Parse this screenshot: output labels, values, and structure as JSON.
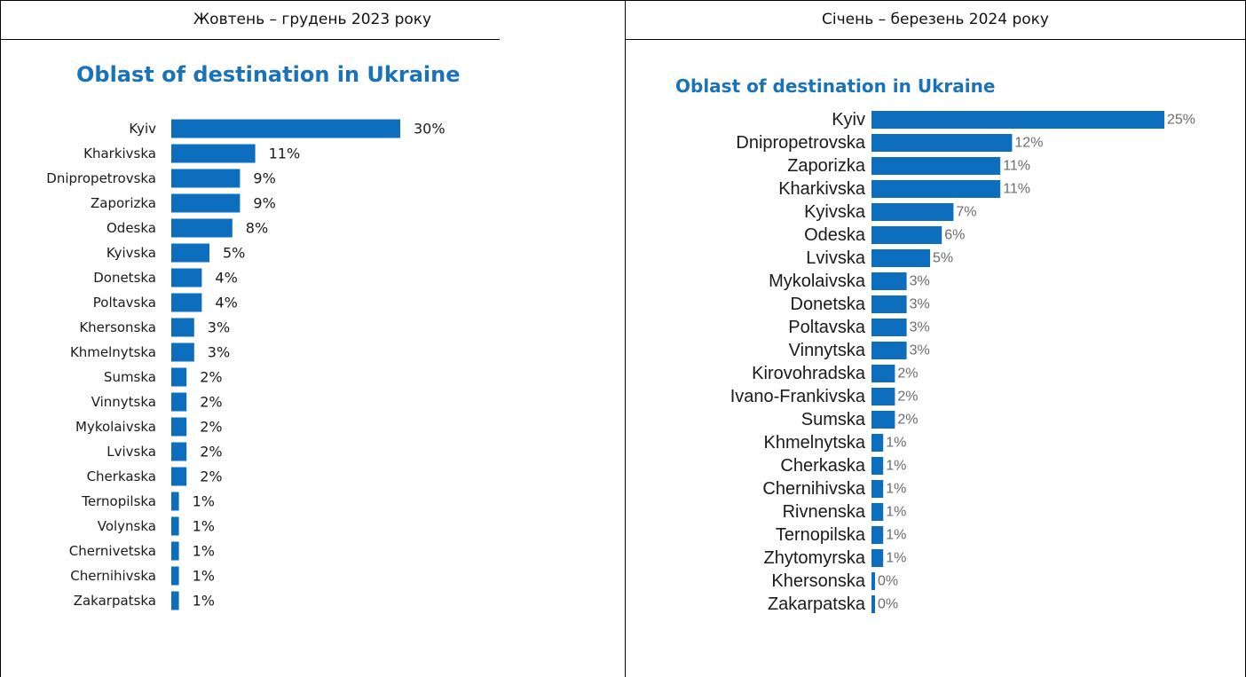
{
  "headers": {
    "left": "Жовтень – грудень 2023 року",
    "right": "Січень – березень 2024 року"
  },
  "colors": {
    "bar": "#0d6ebd",
    "title": "#1a73b8",
    "left_label": "#1a1a1a",
    "right_label": "#1a1a1a",
    "right_value": "#6b6b6b"
  },
  "chart_data": [
    {
      "type": "bar",
      "orientation": "horizontal",
      "title": "Oblast of destination in Ukraine",
      "unit": "%",
      "categories": [
        "Kyiv",
        "Kharkivska",
        "Dnipropetrovska",
        "Zaporizka",
        "Odeska",
        "Kyivska",
        "Donetska",
        "Poltavska",
        "Khersonska",
        "Khmelnytska",
        "Sumska",
        "Vinnytska",
        "Mykolaivska",
        "Lvivska",
        "Cherkaska",
        "Ternopilska",
        "Volynska",
        "Chernivetska",
        "Chernihivska",
        "Zakarpatska"
      ],
      "values": [
        30,
        11,
        9,
        9,
        8,
        5,
        4,
        4,
        3,
        3,
        2,
        2,
        2,
        2,
        2,
        1,
        1,
        1,
        1,
        1
      ],
      "data_labels": [
        "30%",
        "11%",
        "9%",
        "9%",
        "8%",
        "5%",
        "4%",
        "4%",
        "3%",
        "3%",
        "2%",
        "2%",
        "2%",
        "2%",
        "2%",
        "1%",
        "1%",
        "1%",
        "1%",
        "1%"
      ]
    },
    {
      "type": "bar",
      "orientation": "horizontal",
      "title": "Oblast of destination in Ukraine",
      "unit": "%",
      "categories": [
        "Kyiv",
        "Dnipropetrovska",
        "Zaporizka",
        "Kharkivska",
        "Kyivska",
        "Odeska",
        "Lvivska",
        "Mykolaivska",
        "Donetska",
        "Poltavska",
        "Vinnytska",
        "Kirovohradska",
        "Ivano-Frankivska",
        "Sumska",
        "Khmelnytska",
        "Cherkaska",
        "Chernihivska",
        "Rivnenska",
        "Ternopilska",
        "Zhytomyrska",
        "Khersonska",
        "Zakarpatska"
      ],
      "values": [
        25,
        12,
        11,
        11,
        7,
        6,
        5,
        3,
        3,
        3,
        3,
        2,
        2,
        2,
        1,
        1,
        1,
        1,
        1,
        1,
        0,
        0
      ],
      "data_labels": [
        "25%",
        "12%",
        "11%",
        "11%",
        "7%",
        "6%",
        "5%",
        "3%",
        "3%",
        "3%",
        "3%",
        "2%",
        "2%",
        "2%",
        "1%",
        "1%",
        "1%",
        "1%",
        "1%",
        "1%",
        "0%",
        "0%"
      ]
    }
  ]
}
